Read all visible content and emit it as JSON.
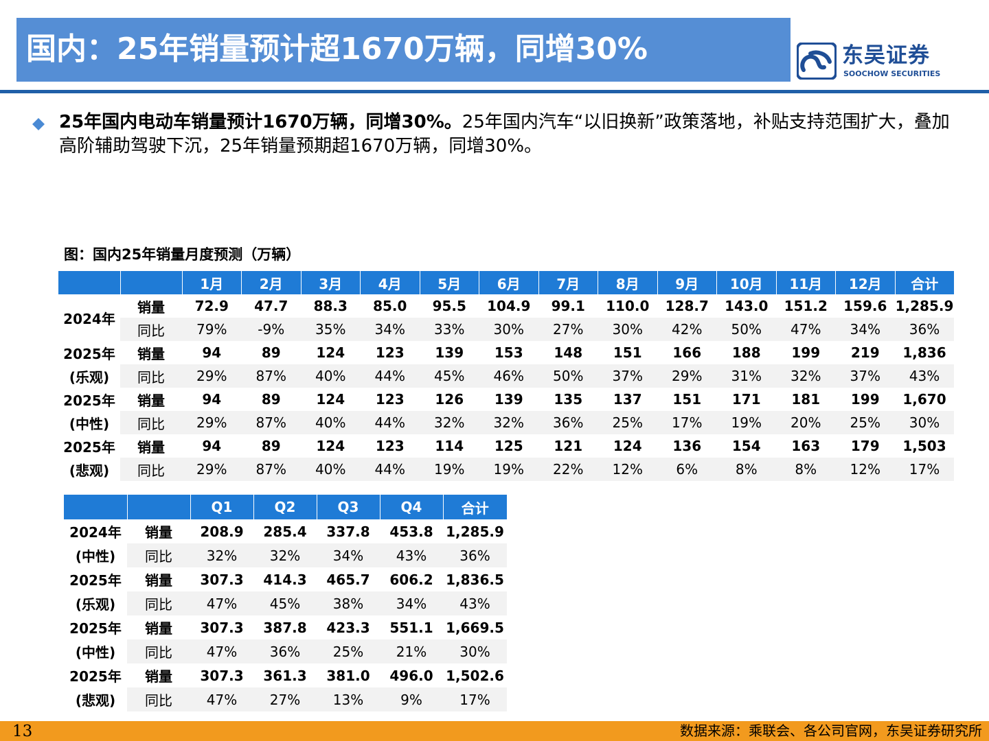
{
  "header": {
    "title": "国内：25年销量预计超1670万辆，同增30%",
    "logo_cn": "东吴证券",
    "logo_en": "SOOCHOW SECURITIES",
    "accent_color": "#558ed5",
    "logo_color": "#1f4e96"
  },
  "body": {
    "bold_text": "25年国内电动车销量预计1670万辆，同增30%。",
    "text": "25年国内汽车“以旧换新”政策落地，补贴支持范围扩大，叠加高阶辅助驾驶下沉，25年销量预期超1670万辆，同增30%。",
    "bullet_icon": "diamond-bullet-icon"
  },
  "figure_title": "图：国内25年销量月度预测（万辆）",
  "monthly_table": {
    "header_color": "#1f7bd6",
    "columns": [
      "",
      "",
      "1月",
      "2月",
      "3月",
      "4月",
      "5月",
      "6月",
      "7月",
      "8月",
      "9月",
      "10月",
      "11月",
      "12月",
      "合计"
    ],
    "groups": [
      {
        "year": "2024年",
        "scenario": "",
        "rows": [
          {
            "label": "销量",
            "values": [
              "72.9",
              "47.7",
              "88.3",
              "85.0",
              "95.5",
              "104.9",
              "99.1",
              "110.0",
              "128.7",
              "143.0",
              "151.2",
              "159.6",
              "1,285.9"
            ]
          },
          {
            "label": "同比",
            "values": [
              "79%",
              "-9%",
              "35%",
              "34%",
              "33%",
              "30%",
              "27%",
              "30%",
              "42%",
              "50%",
              "47%",
              "34%",
              "36%"
            ]
          }
        ]
      },
      {
        "year": "2025年",
        "scenario": "(乐观)",
        "rows": [
          {
            "label": "销量",
            "values": [
              "94",
              "89",
              "124",
              "123",
              "139",
              "153",
              "148",
              "151",
              "166",
              "188",
              "199",
              "219",
              "1,836"
            ]
          },
          {
            "label": "同比",
            "values": [
              "29%",
              "87%",
              "40%",
              "44%",
              "45%",
              "46%",
              "50%",
              "37%",
              "29%",
              "31%",
              "32%",
              "37%",
              "43%"
            ]
          }
        ]
      },
      {
        "year": "2025年",
        "scenario": "(中性)",
        "rows": [
          {
            "label": "销量",
            "values": [
              "94",
              "89",
              "124",
              "123",
              "126",
              "139",
              "135",
              "137",
              "151",
              "171",
              "181",
              "199",
              "1,670"
            ]
          },
          {
            "label": "同比",
            "values": [
              "29%",
              "87%",
              "40%",
              "44%",
              "32%",
              "32%",
              "36%",
              "25%",
              "17%",
              "19%",
              "20%",
              "25%",
              "30%"
            ]
          }
        ]
      },
      {
        "year": "2025年",
        "scenario": "(悲观)",
        "rows": [
          {
            "label": "销量",
            "values": [
              "94",
              "89",
              "124",
              "123",
              "114",
              "125",
              "121",
              "124",
              "136",
              "154",
              "163",
              "179",
              "1,503"
            ]
          },
          {
            "label": "同比",
            "values": [
              "29%",
              "87%",
              "40%",
              "44%",
              "19%",
              "19%",
              "22%",
              "12%",
              "6%",
              "8%",
              "8%",
              "12%",
              "17%"
            ]
          }
        ]
      }
    ]
  },
  "quarterly_table": {
    "columns": [
      "",
      "",
      "Q1",
      "Q2",
      "Q3",
      "Q4",
      "合计"
    ],
    "groups": [
      {
        "year": "2024年",
        "scenario": "(中性)",
        "rows": [
          {
            "label": "销量",
            "values": [
              "208.9",
              "285.4",
              "337.8",
              "453.8",
              "1,285.9"
            ]
          },
          {
            "label": "同比",
            "values": [
              "32%",
              "32%",
              "34%",
              "43%",
              "36%"
            ]
          }
        ]
      },
      {
        "year": "2025年",
        "scenario": "(乐观)",
        "rows": [
          {
            "label": "销量",
            "values": [
              "307.3",
              "414.3",
              "465.7",
              "606.2",
              "1,836.5"
            ]
          },
          {
            "label": "同比",
            "values": [
              "47%",
              "45%",
              "38%",
              "34%",
              "43%"
            ]
          }
        ]
      },
      {
        "year": "2025年",
        "scenario": "(中性)",
        "rows": [
          {
            "label": "销量",
            "values": [
              "307.3",
              "387.8",
              "423.3",
              "551.1",
              "1,669.5"
            ]
          },
          {
            "label": "同比",
            "values": [
              "47%",
              "36%",
              "25%",
              "21%",
              "30%"
            ]
          }
        ]
      },
      {
        "year": "2025年",
        "scenario": "(悲观)",
        "rows": [
          {
            "label": "销量",
            "values": [
              "307.3",
              "361.3",
              "381.0",
              "496.0",
              "1,502.6"
            ]
          },
          {
            "label": "同比",
            "values": [
              "47%",
              "27%",
              "13%",
              "9%",
              "17%"
            ]
          }
        ]
      }
    ]
  },
  "footer": {
    "page_number": "13",
    "source": "数据来源：乘联会、各公司官网，东吴证券研究所",
    "bar_color": "#f29a1e"
  }
}
